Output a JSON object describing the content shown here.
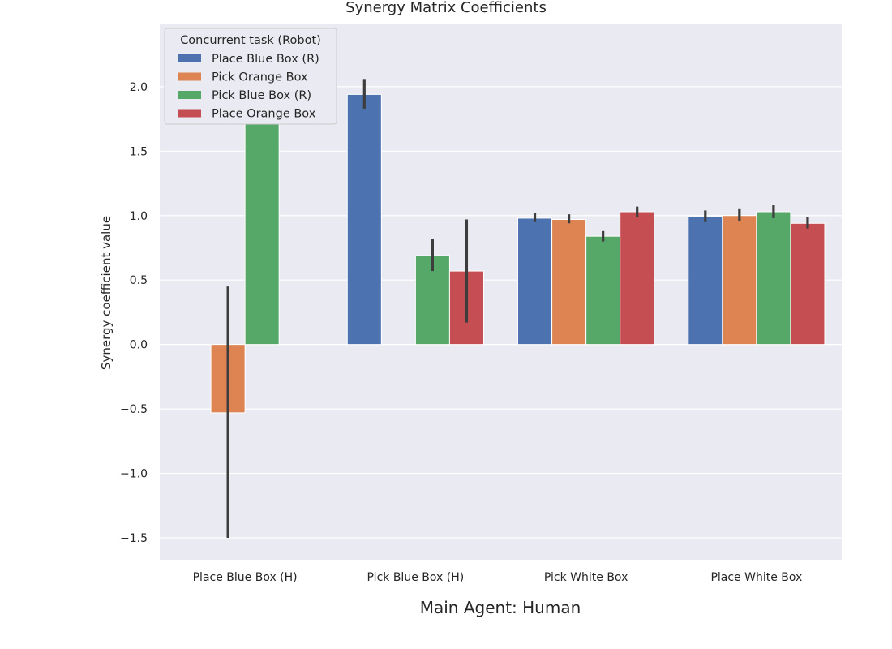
{
  "chart_data": {
    "type": "bar",
    "title": "Synergy Matrix Coefficients",
    "xlabel": "Main Agent: Human",
    "ylabel": "Synergy coefficient value",
    "ylim": [
      -1.67,
      2.49
    ],
    "yticks": [
      -1.5,
      -1.0,
      -0.5,
      0.0,
      0.5,
      1.0,
      1.5,
      2.0
    ],
    "ytick_labels": [
      "−1.5",
      "−1.0",
      "−0.5",
      "0.0",
      "0.5",
      "1.0",
      "1.5",
      "2.0"
    ],
    "grid": true,
    "legend": {
      "title": "Concurrent task (Robot)",
      "position": "top-left"
    },
    "categories": [
      "Place Blue Box (H)",
      "Pick Blue Box (H)",
      "Pick White Box",
      "Place White Box"
    ],
    "series": [
      {
        "name": "Place Blue Box (R)",
        "color": "#4c72b0",
        "values": [
          null,
          1.94,
          0.98,
          0.99
        ],
        "err_low": [
          null,
          1.83,
          0.95,
          0.95
        ],
        "err_high": [
          null,
          2.06,
          1.02,
          1.04
        ]
      },
      {
        "name": "Pick Orange Box",
        "color": "#dd8452",
        "values": [
          -0.53,
          null,
          0.97,
          1.0
        ],
        "err_low": [
          -1.5,
          null,
          0.94,
          0.96
        ],
        "err_high": [
          0.45,
          null,
          1.01,
          1.05
        ]
      },
      {
        "name": "Pick Blue Box (R)",
        "color": "#55a868",
        "values": [
          2.02,
          0.69,
          0.84,
          1.03
        ],
        "err_low": [
          1.75,
          0.57,
          0.8,
          0.98
        ],
        "err_high": [
          2.3,
          0.82,
          0.88,
          1.08
        ]
      },
      {
        "name": "Place Orange Box",
        "color": "#c44e52",
        "values": [
          null,
          0.57,
          1.03,
          0.94
        ],
        "err_low": [
          null,
          0.17,
          0.99,
          0.9
        ],
        "err_high": [
          null,
          0.97,
          1.07,
          0.99
        ]
      }
    ]
  }
}
